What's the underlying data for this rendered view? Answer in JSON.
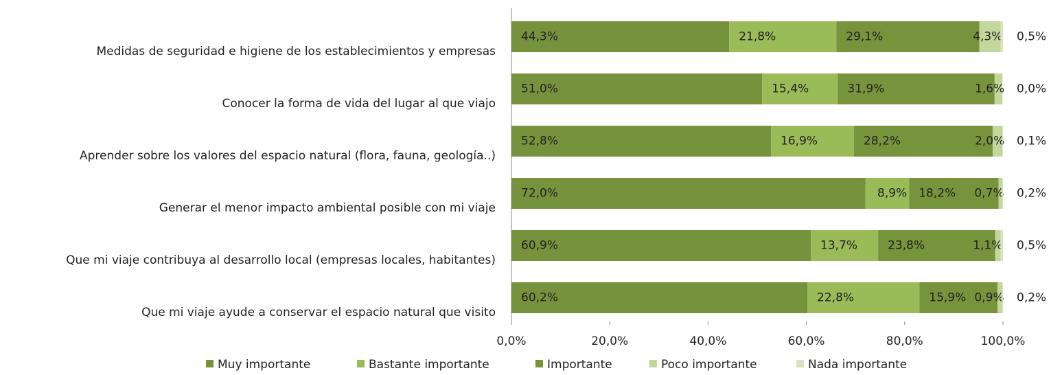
{
  "chart_data": {
    "type": "stacked_barh",
    "categories": [
      "Medidas de seguridad e higiene de los establecimientos y empresas",
      "Conocer la forma de vida del lugar al que viajo",
      "Aprender sobre los valores del espacio natural (flora, fauna, geología..)",
      "Generar el menor impacto ambiental posible con mi viaje",
      "Que mi viaje contribuya al desarrollo local (empresas locales, habitantes)",
      "Que mi viaje ayude a conservar el espacio natural que visito"
    ],
    "series": [
      {
        "name": "Muy importante",
        "color": "#76923c",
        "values": [
          44.3,
          51.0,
          52.8,
          72.0,
          60.9,
          60.2
        ],
        "value_labels": [
          "44,3%",
          "51,0%",
          "52,8%",
          "72,0%",
          "60,9%",
          "60,2%"
        ]
      },
      {
        "name": "Bastante importante",
        "color": "#9bbb59",
        "values": [
          21.8,
          15.4,
          16.9,
          8.9,
          13.7,
          22.8
        ],
        "value_labels": [
          "21,8%",
          "15,4%",
          "16,9%",
          "8,9%",
          "13,7%",
          "22,8%"
        ]
      },
      {
        "name": "Importante",
        "color": "#77933c",
        "values": [
          29.1,
          31.9,
          28.2,
          18.2,
          23.8,
          15.9
        ],
        "value_labels": [
          "29,1%",
          "31,9%",
          "28,2%",
          "18,2%",
          "23,8%",
          "15,9%"
        ]
      },
      {
        "name": "Poco importante",
        "color": "#c3d69b",
        "values": [
          4.3,
          1.6,
          2.0,
          0.7,
          1.1,
          0.9
        ],
        "value_labels": [
          "4,3%",
          "1,6%",
          "2,0%",
          "0,7%",
          "1,1%",
          "0,9%"
        ]
      },
      {
        "name": "Nada importante",
        "color": "#d7e4bd",
        "values": [
          0.5,
          0.0,
          0.1,
          0.2,
          0.5,
          0.2
        ],
        "value_labels": [
          "0,5%",
          "0,0%",
          "0,1%",
          "0,2%",
          "0,5%",
          "0,2%"
        ]
      }
    ],
    "xlim": [
      0,
      100
    ],
    "xticks": [
      {
        "value": 0,
        "label": "0,0%"
      },
      {
        "value": 20,
        "label": "20,0%"
      },
      {
        "value": 40,
        "label": "40,0%"
      },
      {
        "value": 60,
        "label": "60,0%"
      },
      {
        "value": 80,
        "label": "80,0%"
      },
      {
        "value": 100,
        "label": "100,0%"
      }
    ],
    "legend": "bottom"
  }
}
